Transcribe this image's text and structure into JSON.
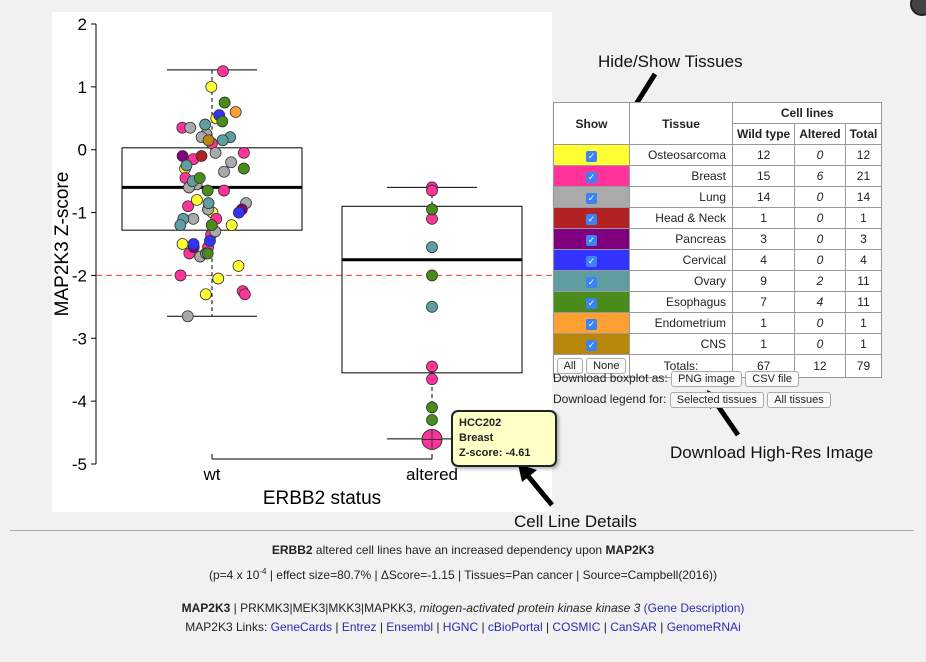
{
  "chart_data": {
    "type": "scatter",
    "subtype": "boxplot with jittered points",
    "xlabel": "ERBB2 status",
    "ylabel": "MAP2K3 Z-score",
    "categories": [
      "wt",
      "altered"
    ],
    "ylim": [
      -5,
      2
    ],
    "yticks": [
      2,
      1,
      0,
      -1,
      -2,
      -3,
      -4,
      -5
    ],
    "threshold_line": -2,
    "boxes": [
      {
        "category": "wt",
        "q1": -1.28,
        "median": -0.6,
        "q3": 0.03,
        "whisker_low": -2.65,
        "whisker_high": 1.27
      },
      {
        "category": "altered",
        "q1": -3.55,
        "median": -1.75,
        "q3": -0.9,
        "whisker_low": -4.6,
        "whisker_high": -0.6
      }
    ],
    "series": [
      {
        "name": "Osteosarcoma",
        "color": "#ffff33",
        "points": [
          [
            "wt",
            1.0
          ],
          [
            "wt",
            0.5
          ],
          [
            "wt",
            -0.3
          ],
          [
            "wt",
            -0.55
          ],
          [
            "wt",
            -0.95
          ],
          [
            "wt",
            -1.0
          ],
          [
            "wt",
            -1.5
          ],
          [
            "wt",
            -1.85
          ],
          [
            "wt",
            -2.05
          ],
          [
            "wt",
            -2.3
          ],
          [
            "wt",
            -0.8
          ],
          [
            "wt",
            -1.2
          ]
        ]
      },
      {
        "name": "Breast",
        "color": "#ff3399",
        "points": [
          [
            "wt",
            1.25
          ],
          [
            "wt",
            0.35
          ],
          [
            "wt",
            0.1
          ],
          [
            "wt",
            -0.15
          ],
          [
            "wt",
            -0.65
          ],
          [
            "wt",
            -0.9
          ],
          [
            "wt",
            -1.1
          ],
          [
            "wt",
            -1.35
          ],
          [
            "wt",
            -1.65
          ],
          [
            "wt",
            -2.0
          ],
          [
            "wt",
            -2.25
          ],
          [
            "wt",
            -2.3
          ],
          [
            "wt",
            -0.45
          ],
          [
            "wt",
            -1.55
          ],
          [
            "wt",
            -0.05
          ],
          [
            "altered",
            -0.6
          ],
          [
            "altered",
            -0.65
          ],
          [
            "altered",
            -1.1
          ],
          [
            "altered",
            -3.45
          ],
          [
            "altered",
            -3.65
          ],
          [
            "altered",
            -4.61
          ]
        ]
      },
      {
        "name": "Lung",
        "color": "#aaaaaa",
        "points": [
          [
            "wt",
            0.35
          ],
          [
            "wt",
            0.25
          ],
          [
            "wt",
            -0.05
          ],
          [
            "wt",
            -0.35
          ],
          [
            "wt",
            -0.55
          ],
          [
            "wt",
            -0.6
          ],
          [
            "wt",
            -0.85
          ],
          [
            "wt",
            -0.95
          ],
          [
            "wt",
            -1.1
          ],
          [
            "wt",
            -1.3
          ],
          [
            "wt",
            -1.7
          ],
          [
            "wt",
            -2.65
          ],
          [
            "wt",
            -0.2
          ],
          [
            "wt",
            0.2
          ]
        ]
      },
      {
        "name": "Head & Neck",
        "color": "#b22222",
        "points": [
          [
            "wt",
            -0.1
          ]
        ]
      },
      {
        "name": "Pancreas",
        "color": "#800080",
        "points": [
          [
            "wt",
            -0.1
          ],
          [
            "wt",
            -0.95
          ],
          [
            "wt",
            -1.55
          ]
        ]
      },
      {
        "name": "Cervical",
        "color": "#3333ff",
        "points": [
          [
            "wt",
            -1.0
          ],
          [
            "wt",
            -1.45
          ],
          [
            "wt",
            -1.5
          ],
          [
            "wt",
            0.55
          ]
        ]
      },
      {
        "name": "Ovary",
        "color": "#5f9ea0",
        "points": [
          [
            "wt",
            0.4
          ],
          [
            "wt",
            0.2
          ],
          [
            "wt",
            0.15
          ],
          [
            "wt",
            -0.25
          ],
          [
            "wt",
            -0.5
          ],
          [
            "wt",
            -0.85
          ],
          [
            "wt",
            -1.1
          ],
          [
            "wt",
            -1.2
          ],
          [
            "wt",
            -1.65
          ],
          [
            "altered",
            -1.55
          ],
          [
            "altered",
            -2.5
          ]
        ]
      },
      {
        "name": "Esophagus",
        "color": "#4a8c1c",
        "points": [
          [
            "wt",
            0.75
          ],
          [
            "wt",
            0.45
          ],
          [
            "wt",
            -0.3
          ],
          [
            "wt",
            -0.45
          ],
          [
            "wt",
            -0.65
          ],
          [
            "wt",
            -1.2
          ],
          [
            "wt",
            -1.65
          ],
          [
            "altered",
            -0.95
          ],
          [
            "altered",
            -2.0
          ],
          [
            "altered",
            -4.1
          ],
          [
            "altered",
            -4.3
          ]
        ]
      },
      {
        "name": "Endometrium",
        "color": "#ffa033",
        "points": [
          [
            "wt",
            0.6
          ]
        ]
      },
      {
        "name": "CNS",
        "color": "#b8860b",
        "points": [
          [
            "wt",
            0.15
          ]
        ]
      }
    ],
    "highlight": {
      "category": "altered",
      "y": -4.61,
      "color": "#ff3399"
    }
  },
  "annotations": {
    "hide_show": "Hide/Show Tissues",
    "download_highres": "Download High-Res Image",
    "cell_line_details": "Cell Line Details"
  },
  "tooltip": {
    "line1": "HCC202",
    "line2": "Breast",
    "line3": "Z-score: -4.61"
  },
  "legend": {
    "headers": {
      "show": "Show",
      "tissue": "Tissue",
      "cell_lines": "Cell lines",
      "wild_type": "Wild type",
      "altered": "Altered",
      "total": "Total"
    },
    "rows": [
      {
        "tissue": "Osteosarcoma",
        "color": "#ffff33",
        "wild": "12",
        "altered": "0",
        "total": "12"
      },
      {
        "tissue": "Breast",
        "color": "#ff3399",
        "wild": "15",
        "altered": "6",
        "total": "21"
      },
      {
        "tissue": "Lung",
        "color": "#aaaaaa",
        "wild": "14",
        "altered": "0",
        "total": "14"
      },
      {
        "tissue": "Head & Neck",
        "color": "#b22222",
        "wild": "1",
        "altered": "0",
        "total": "1"
      },
      {
        "tissue": "Pancreas",
        "color": "#800080",
        "wild": "3",
        "altered": "0",
        "total": "3"
      },
      {
        "tissue": "Cervical",
        "color": "#3333ff",
        "wild": "4",
        "altered": "0",
        "total": "4"
      },
      {
        "tissue": "Ovary",
        "color": "#5f9ea0",
        "wild": "9",
        "altered": "2",
        "total": "11"
      },
      {
        "tissue": "Esophagus",
        "color": "#4a8c1c",
        "wild": "7",
        "altered": "4",
        "total": "11"
      },
      {
        "tissue": "Endometrium",
        "color": "#ffa033",
        "wild": "1",
        "altered": "0",
        "total": "1"
      },
      {
        "tissue": "CNS",
        "color": "#b8860b",
        "wild": "1",
        "altered": "0",
        "total": "1"
      }
    ],
    "all_label": "All",
    "none_label": "None",
    "totals_label": "Totals:",
    "totals": {
      "wild": "67",
      "altered": "12",
      "total": "79"
    }
  },
  "downloads": {
    "boxplot_label": "Download boxplot as:",
    "png_button": "PNG image",
    "csv_button": "CSV file",
    "legend_label": "Download legend for:",
    "selected_button": "Selected tissues",
    "all_button": "All tissues"
  },
  "footer": {
    "summary_gene": "ERBB2",
    "summary_text": " altered cell lines have an increased dependency upon ",
    "summary_target": "MAP2K3",
    "stats_prefix": "(p=4 x 10",
    "stats_exp": "-4",
    "stats_rest": " | effect size=80.7% | ΔScore=-1.15 | Tissues=Pan cancer | Source=Campbell(2016))",
    "gene_symbol": "MAP2K3",
    "gene_synonyms": " | PRKMK3|MEK3|MKK3|MAPKK3, ",
    "gene_fullname": "mitogen-activated protein kinase kinase 3",
    "gene_desc_link": "(Gene Description)",
    "links_label": "MAP2K3 Links: ",
    "links": [
      "GeneCards",
      "Entrez",
      "Ensembl",
      "HGNC",
      "cBioPortal",
      "COSMIC",
      "CanSAR",
      "GenomeRNAi"
    ]
  }
}
